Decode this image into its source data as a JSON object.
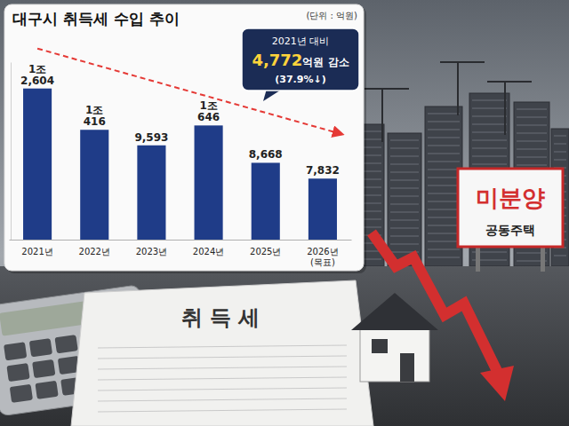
{
  "chart_data": {
    "type": "bar",
    "title": "대구시 취득세 수입 추이",
    "subtitle": "(단위 : 억원)",
    "categories": [
      "2021년",
      "2022년",
      "2023년",
      "2024년",
      "2025년",
      "2026년\n(목표)"
    ],
    "values": [
      12604,
      10416,
      9593,
      10646,
      8668,
      7832
    ],
    "value_labels": [
      "1조\n2,604",
      "1조\n416",
      "9,593",
      "1조\n646",
      "8,668",
      "7,832"
    ],
    "color": "#1f3c88",
    "ylim": [
      4600,
      14000
    ],
    "yticks": [],
    "grid": false,
    "data_labels": true,
    "tick_labels": "x",
    "annotations": [
      "2021년 대비",
      "4,772",
      "억원 감소",
      "(37.9%↓)",
      "미분양",
      "공동주택",
      "취 득 세"
    ]
  }
}
